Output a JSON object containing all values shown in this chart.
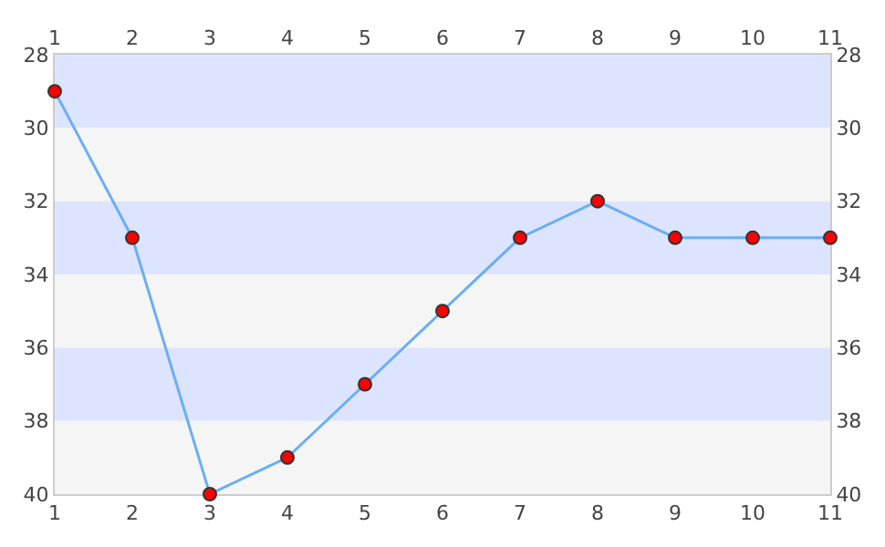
{
  "chart_data": {
    "type": "line",
    "x": [
      1,
      2,
      3,
      4,
      5,
      6,
      7,
      8,
      9,
      10,
      11
    ],
    "series": [
      {
        "color": "#6aaef5",
        "colors": [
          "#ff0000",
          "#ff0000",
          "#ff0000",
          "#ff0000",
          "#ff0000",
          "#ff0000",
          "#ff0000",
          "#ff0000",
          "#ff0000",
          "#ff0000",
          "#ff0000"
        ],
        "values": [
          29,
          33,
          40,
          39,
          37,
          35,
          33,
          32,
          33,
          33,
          33
        ]
      }
    ],
    "xlim": [
      1,
      11
    ],
    "xticks": [
      1,
      2,
      3,
      4,
      5,
      6,
      7,
      8,
      9,
      10,
      11
    ],
    "x2lim": [
      1,
      11
    ],
    "x2ticks": [
      1,
      2,
      3,
      4,
      5,
      6,
      7,
      8,
      9,
      10,
      11
    ],
    "ylim": [
      40,
      28
    ],
    "yticks": [
      28,
      30,
      32,
      34,
      36,
      38,
      40
    ],
    "y2lim": [
      40,
      28
    ],
    "y2ticks": [
      28,
      30,
      32,
      34,
      36,
      38,
      40
    ],
    "bands": [
      {
        "axis": "y",
        "from": 28,
        "to": 30,
        "color": "#dde4ff"
      },
      {
        "axis": "y",
        "from": 30,
        "to": 32,
        "color": "#f5f5f5"
      },
      {
        "axis": "y",
        "from": 32,
        "to": 34,
        "color": "#dde4ff"
      },
      {
        "axis": "y",
        "from": 34,
        "to": 36,
        "color": "#f5f5f5"
      },
      {
        "axis": "y",
        "from": 36,
        "to": 38,
        "color": "#dde4ff"
      },
      {
        "axis": "y",
        "from": 38,
        "to": 40,
        "color": "#f5f5f5"
      }
    ],
    "marker": "circle",
    "line_style": "solid",
    "grid": false,
    "legend": false
  }
}
